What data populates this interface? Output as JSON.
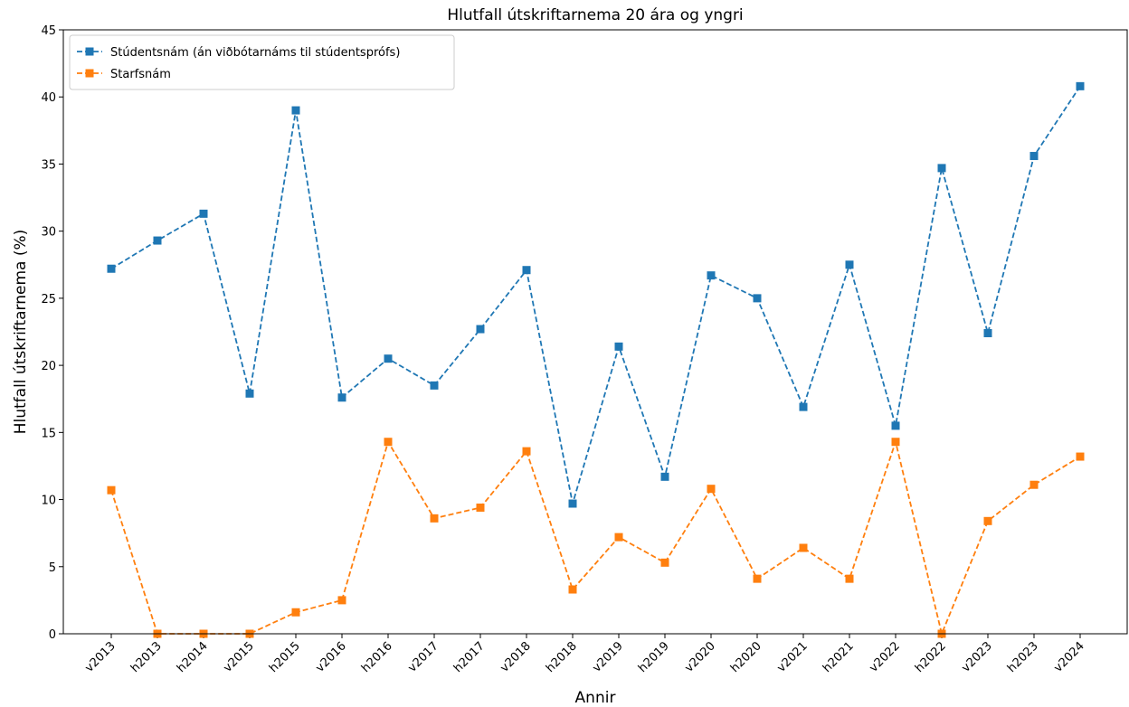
{
  "chart_data": {
    "type": "line",
    "title": "Hlutfall útskriftarnema 20 ára og yngri",
    "xlabel": "Annir",
    "ylabel": "Hlutfall útskriftarnema (%)",
    "categories": [
      "v2013",
      "h2013",
      "h2014",
      "v2015",
      "h2015",
      "v2016",
      "h2016",
      "v2017",
      "h2017",
      "v2018",
      "h2018",
      "v2019",
      "h2019",
      "v2020",
      "h2020",
      "v2021",
      "h2021",
      "v2022",
      "h2022",
      "v2023",
      "h2023",
      "v2024"
    ],
    "series": [
      {
        "name": "Stúdentsnám (án viðbótarnáms til stúdentsprófs)",
        "color": "#1f77b4",
        "values": [
          27.2,
          29.3,
          31.3,
          17.9,
          39.0,
          17.6,
          20.5,
          18.5,
          22.7,
          27.1,
          9.7,
          21.4,
          11.7,
          26.7,
          25.0,
          16.9,
          27.5,
          15.5,
          34.7,
          22.4,
          35.6,
          40.8
        ]
      },
      {
        "name": "Starfsnám",
        "color": "#ff7f0e",
        "values": [
          10.7,
          0,
          0,
          0,
          1.6,
          2.5,
          14.3,
          8.6,
          9.4,
          13.6,
          3.3,
          7.2,
          5.3,
          10.8,
          4.1,
          6.4,
          4.1,
          14.3,
          0,
          8.4,
          11.1,
          13.2
        ]
      }
    ],
    "ylim": [
      0,
      45
    ],
    "yticks": [
      0,
      5,
      10,
      15,
      20,
      25,
      30,
      35,
      40,
      45
    ],
    "legend": "upper left",
    "grid": false
  }
}
